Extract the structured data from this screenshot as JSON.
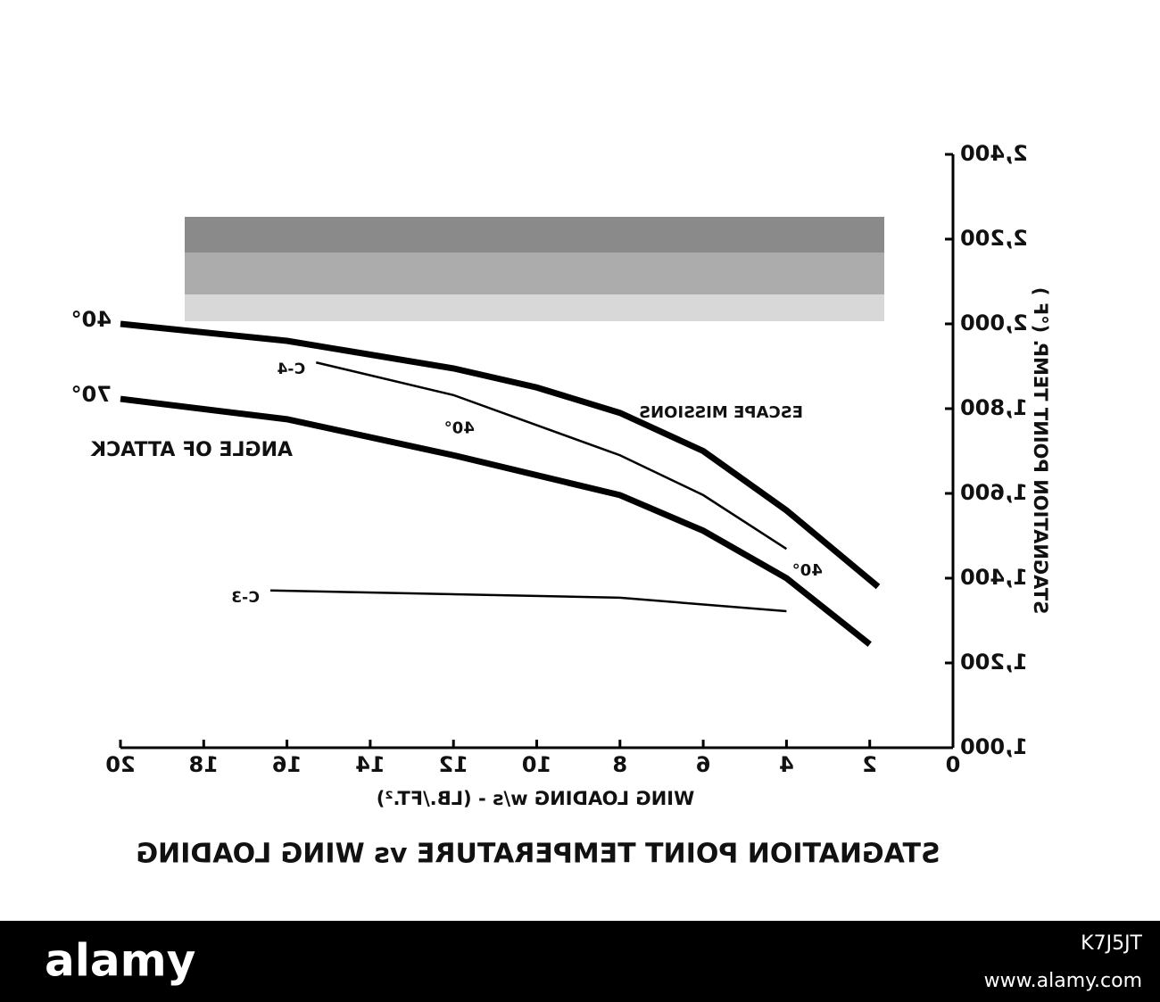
{
  "chart_data": {
    "type": "line",
    "title": "STAGNATION POINT TEMPERATURE vs WING LOADING",
    "x_label": "WING LOADING w/s - (LB./FT.²)",
    "y_label": "STAGNATION POINT TEMP. (°F )",
    "annotations": [
      "ANGLE OF ATTACK",
      "ESCAPE MISSIONS"
    ],
    "x_reversed": true,
    "y_axis_side": "right",
    "xlim": [
      0,
      20
    ],
    "xticks": [
      0,
      2,
      4,
      6,
      8,
      10,
      12,
      14,
      16,
      18,
      20
    ],
    "ylim": [
      1000,
      2400
    ],
    "yticks": [
      {
        "value": 1000,
        "label": "1,000"
      },
      {
        "value": 1200,
        "label": "1,200"
      },
      {
        "value": 1400,
        "label": "1,400"
      },
      {
        "value": 1600,
        "label": "1,600"
      },
      {
        "value": 1800,
        "label": "1,800"
      },
      {
        "value": 2000,
        "label": "2,000"
      },
      {
        "value": 2200,
        "label": "2,200"
      },
      {
        "value": 2400,
        "label": "2,400"
      }
    ],
    "series": [
      {
        "name": "40°",
        "color": "#000000",
        "width": 7,
        "x": [
          20,
          16,
          12,
          10,
          8,
          6,
          4,
          1.8
        ],
        "values": [
          2000,
          1960,
          1895,
          1850,
          1790,
          1700,
          1560,
          1380
        ]
      },
      {
        "name": "70°",
        "color": "#000000",
        "width": 7,
        "x": [
          20,
          16,
          12,
          8,
          6,
          4,
          2
        ],
        "values": [
          1823,
          1775,
          1690,
          1596,
          1512,
          1400,
          1244
        ]
      },
      {
        "name": "C-4",
        "angle": "40°",
        "color": "#000000",
        "width": 2.5,
        "x": [
          15.3,
          12,
          8,
          6,
          4
        ],
        "values": [
          1909,
          1832,
          1690,
          1596,
          1469
        ]
      },
      {
        "name": "C-3",
        "angle": "40°",
        "color": "#000000",
        "width": 2.5,
        "x": [
          16.4,
          8,
          4
        ],
        "values": [
          1371,
          1354,
          1322
        ]
      }
    ]
  },
  "watermark": {
    "brand": "alamy",
    "image_id": "K7J5JT",
    "url": "www.alamy.com"
  }
}
